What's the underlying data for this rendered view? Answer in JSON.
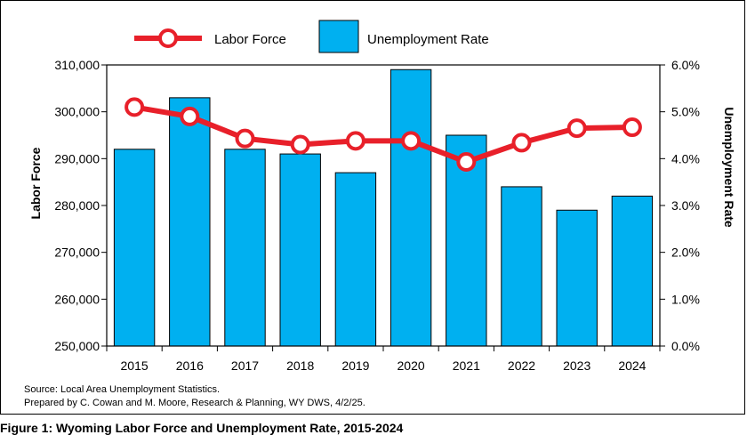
{
  "chart_data": {
    "type": "bar",
    "title": "",
    "categories": [
      "2015",
      "2016",
      "2017",
      "2018",
      "2019",
      "2020",
      "2021",
      "2022",
      "2023",
      "2024"
    ],
    "series": [
      {
        "name": "Unemployment Rate",
        "type": "bar",
        "axis": "right",
        "color": "#00b0f0",
        "values": [
          4.2,
          5.3,
          4.2,
          4.1,
          3.7,
          5.9,
          4.5,
          3.4,
          2.9,
          3.2
        ]
      },
      {
        "name": "Labor Force",
        "type": "line",
        "axis": "left",
        "color": "#e8202a",
        "values": [
          301000,
          299000,
          294300,
          293000,
          293800,
          293800,
          289300,
          293400,
          296500,
          296700
        ]
      }
    ],
    "ylabel": "Labor Force",
    "y2label": "Unemployment Rate",
    "ylim": [
      250000,
      310000
    ],
    "y2lim": [
      0,
      6
    ],
    "yticks": [
      "250,000",
      "260,000",
      "270,000",
      "280,000",
      "290,000",
      "300,000",
      "310,000"
    ],
    "y2ticks": [
      "0.0%",
      "1.0%",
      "2.0%",
      "3.0%",
      "4.0%",
      "5.0%",
      "6.0%"
    ],
    "legend_position": "top",
    "grid": false
  },
  "source": {
    "line1": "Source: Local Area Unemployment Statistics.",
    "line2": "Prepared by C. Cowan and M. Moore, Research & Planning, WY DWS, 4/2/25."
  },
  "caption": "Figure 1: Wyoming Labor Force and Unemployment Rate, 2015-2024"
}
